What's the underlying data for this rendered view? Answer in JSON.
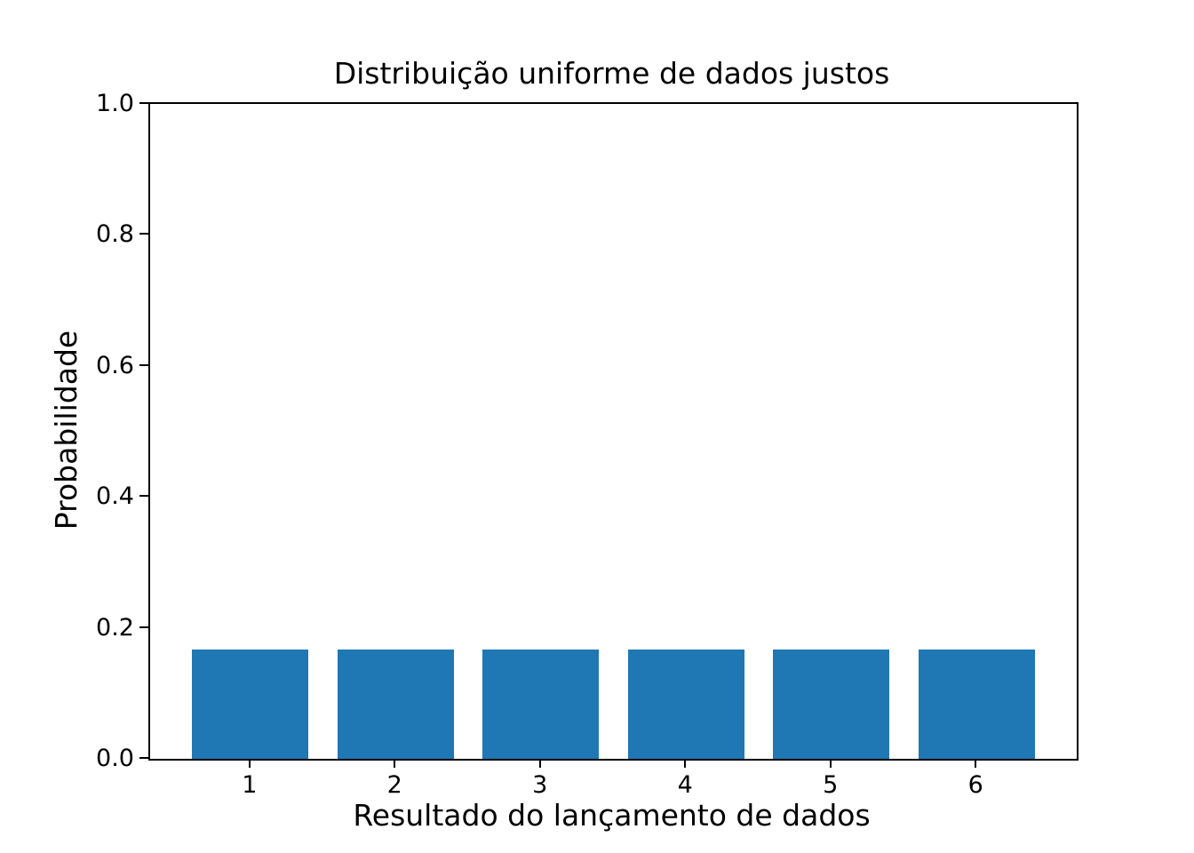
{
  "figure": {
    "background": "#ffffff",
    "text_color": "#000000"
  },
  "chart_data": {
    "type": "bar",
    "title": "Distribuição uniforme de dados justos",
    "xlabel": "Resultado do lançamento de dados",
    "ylabel": "Probabilidade",
    "categories": [
      "1",
      "2",
      "3",
      "4",
      "5",
      "6"
    ],
    "x": [
      1,
      2,
      3,
      4,
      5,
      6
    ],
    "values": [
      0.1667,
      0.1667,
      0.1667,
      0.1667,
      0.1667,
      0.1667
    ],
    "bar_color": "#1f77b4",
    "bar_width": 0.8,
    "xlim": [
      0.31,
      6.69
    ],
    "ylim": [
      0.0,
      1.0
    ],
    "yticks": [
      0.0,
      0.2,
      0.4,
      0.6,
      0.8,
      1.0
    ],
    "ytick_labels": [
      "0.0",
      "0.2",
      "0.4",
      "0.6",
      "0.8",
      "1.0"
    ],
    "grid": false,
    "legend": null,
    "frame": "box",
    "axis_color": "#000000"
  }
}
